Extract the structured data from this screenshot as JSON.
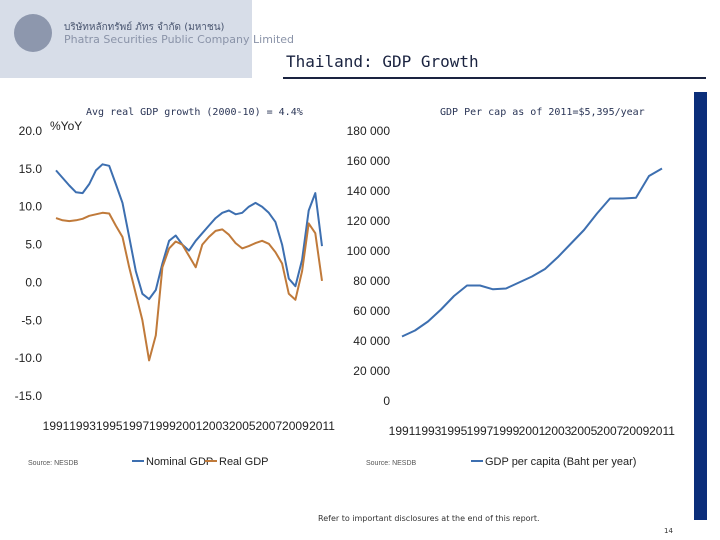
{
  "header": {
    "company_thai": "บริษัทหลักทรัพย์ ภัทร จำกัด (มหาชน)",
    "company_english": "Phatra Securities Public Company Limited",
    "title": "Thailand: GDP Growth"
  },
  "footer": {
    "disclaimer": "Refer to important disclosures at the end of this report.",
    "page_number": "14"
  },
  "colors": {
    "nominal": "#3d6fb0",
    "real": "#c07a3a",
    "percap": "#3d6fb0",
    "accent": "#0b2e7a"
  },
  "chart_data": [
    {
      "type": "line",
      "subtitle": "Avg real GDP growth (2000-10) = 4.4%",
      "unit_label": "%YoY",
      "small_label": "Source: NESDB",
      "x_ticks": [
        "1991",
        "1993",
        "1995",
        "1997",
        "1999",
        "2001",
        "2003",
        "2005",
        "2007",
        "2009",
        "2011"
      ],
      "y_ticks": [
        "20.0",
        "15.0",
        "10.0",
        "5.0",
        "0.0",
        "-5.0",
        "-10.0",
        "-15.0"
      ],
      "ylim": [
        -15,
        20
      ],
      "xlim": [
        1991,
        2011
      ],
      "series": [
        {
          "name": "Nominal GDP",
          "x": [
            1991,
            1991.5,
            1992,
            1992.5,
            1993,
            1993.5,
            1994,
            1994.5,
            1995,
            1995.5,
            1996,
            1996.5,
            1997,
            1997.5,
            1998,
            1998.5,
            1999,
            1999.5,
            2000,
            2000.5,
            2001,
            2001.5,
            2002,
            2002.5,
            2003,
            2003.5,
            2004,
            2004.5,
            2005,
            2005.5,
            2006,
            2006.5,
            2007,
            2007.5,
            2008,
            2008.5,
            2009,
            2009.5,
            2010,
            2010.5,
            2011
          ],
          "values": [
            14.8,
            13.8,
            12.8,
            11.9,
            11.8,
            13.0,
            14.8,
            15.6,
            15.4,
            13.0,
            10.5,
            6.0,
            1.5,
            -1.5,
            -2.2,
            -1.0,
            2.5,
            5.5,
            6.2,
            5.0,
            4.2,
            5.5,
            6.5,
            7.5,
            8.5,
            9.2,
            9.5,
            9.0,
            9.2,
            10.0,
            10.5,
            10.0,
            9.2,
            8.0,
            5.0,
            0.5,
            -0.5,
            3.0,
            9.5,
            11.8,
            4.8
          ]
        },
        {
          "name": "Real GDP",
          "x": [
            1991,
            1991.5,
            1992,
            1992.5,
            1993,
            1993.5,
            1994,
            1994.5,
            1995,
            1995.5,
            1996,
            1996.5,
            1997,
            1997.5,
            1998,
            1998.5,
            1999,
            1999.5,
            2000,
            2000.5,
            2001,
            2001.5,
            2002,
            2002.5,
            2003,
            2003.5,
            2004,
            2004.5,
            2005,
            2005.5,
            2006,
            2006.5,
            2007,
            2007.5,
            2008,
            2008.5,
            2009,
            2009.5,
            2010,
            2010.5,
            2011
          ],
          "values": [
            8.5,
            8.2,
            8.1,
            8.2,
            8.4,
            8.8,
            9.0,
            9.2,
            9.1,
            7.5,
            6.0,
            2.0,
            -1.5,
            -5.0,
            -10.3,
            -7.0,
            2.0,
            4.5,
            5.4,
            5.0,
            3.5,
            2.0,
            5.0,
            6.0,
            6.8,
            7.0,
            6.3,
            5.2,
            4.5,
            4.8,
            5.2,
            5.5,
            5.1,
            4.0,
            2.5,
            -1.5,
            -2.3,
            1.5,
            7.8,
            6.5,
            0.2
          ]
        }
      ]
    },
    {
      "type": "line",
      "subtitle": "GDP Per cap as of 2011=$5,395/year",
      "small_label": "Source: NESDB",
      "x_ticks": [
        "1991",
        "1993",
        "1995",
        "1997",
        "1999",
        "2001",
        "2003",
        "2005",
        "2007",
        "2009",
        "2011"
      ],
      "y_ticks": [
        "180 000",
        "160 000",
        "140 000",
        "120 000",
        "100 000",
        "80 000",
        "60 000",
        "40 000",
        "20 000",
        "0"
      ],
      "ylim": [
        0,
        180000
      ],
      "xlim": [
        1991,
        2011
      ],
      "series": [
        {
          "name": "GDP per capita (Baht per year)",
          "x": [
            1991,
            1992,
            1993,
            1994,
            1995,
            1996,
            1997,
            1998,
            1999,
            2000,
            2001,
            2002,
            2003,
            2004,
            2005,
            2006,
            2007,
            2008,
            2009,
            2010,
            2011
          ],
          "values": [
            43000,
            47000,
            53000,
            61000,
            70000,
            77000,
            77000,
            74500,
            75000,
            79000,
            83000,
            88000,
            96000,
            105000,
            114000,
            125000,
            135000,
            135000,
            135500,
            150000,
            155000
          ]
        }
      ]
    }
  ]
}
